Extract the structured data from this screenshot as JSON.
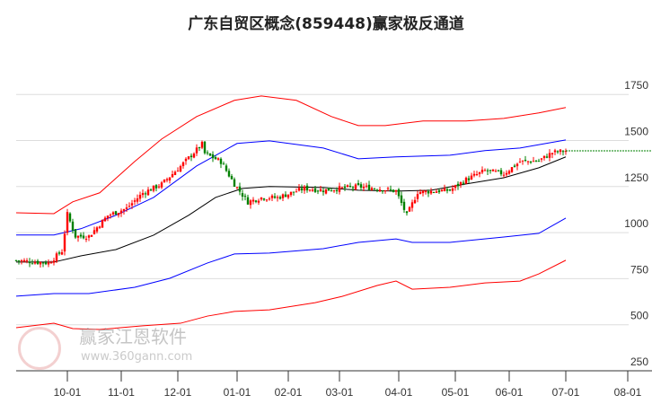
{
  "chart_data": {
    "type": "candlestick",
    "title": "广东自贸区概念(859448)赢家极反通道",
    "ylim": [
      250,
      1750
    ],
    "yticks": [
      250,
      500,
      750,
      1000,
      1250,
      1500,
      1750
    ],
    "ytick_labels": [
      "250",
      "500",
      "750",
      "1000",
      "1250",
      "1500",
      "1750"
    ],
    "xticks": [
      {
        "day": 19,
        "label": "10-01"
      },
      {
        "day": 39,
        "label": "11-01"
      },
      {
        "day": 60,
        "label": "12-01"
      },
      {
        "day": 82,
        "label": "01-01"
      },
      {
        "day": 101,
        "label": "02-01"
      },
      {
        "day": 120,
        "label": "03-01"
      },
      {
        "day": 142,
        "label": "04-01"
      },
      {
        "day": 163,
        "label": "05-01"
      },
      {
        "day": 183,
        "label": "06-01"
      },
      {
        "day": 204,
        "label": "07-01"
      },
      {
        "day": 227,
        "label": "08-01"
      }
    ],
    "last_day": 204,
    "last_close": 1444,
    "close_keypoints": [
      [
        0,
        849
      ],
      [
        12,
        835
      ],
      [
        17,
        900
      ],
      [
        19,
        1100
      ],
      [
        22,
        980
      ],
      [
        27,
        980
      ],
      [
        34,
        1093
      ],
      [
        41,
        1132
      ],
      [
        47,
        1215
      ],
      [
        54,
        1263
      ],
      [
        61,
        1360
      ],
      [
        69,
        1480
      ],
      [
        70,
        1430
      ],
      [
        76,
        1385
      ],
      [
        81,
        1263
      ],
      [
        86,
        1166
      ],
      [
        91,
        1190
      ],
      [
        97,
        1190
      ],
      [
        107,
        1240
      ],
      [
        114,
        1230
      ],
      [
        127,
        1250
      ],
      [
        134,
        1240
      ],
      [
        141,
        1225
      ],
      [
        145,
        1093
      ],
      [
        149,
        1220
      ],
      [
        161,
        1230
      ],
      [
        167,
        1288
      ],
      [
        174,
        1336
      ],
      [
        181,
        1320
      ],
      [
        187,
        1385
      ],
      [
        194,
        1390
      ],
      [
        199,
        1434
      ],
      [
        204,
        1444
      ]
    ],
    "series": [
      {
        "name": "upper-outer",
        "color": "#ff0000",
        "points": [
          [
            0,
            1108
          ],
          [
            14,
            1103
          ],
          [
            21,
            1167
          ],
          [
            31,
            1216
          ],
          [
            44,
            1386
          ],
          [
            54,
            1508
          ],
          [
            67,
            1630
          ],
          [
            81,
            1718
          ],
          [
            91,
            1742
          ],
          [
            104,
            1718
          ],
          [
            117,
            1630
          ],
          [
            127,
            1581
          ],
          [
            137,
            1581
          ],
          [
            151,
            1606
          ],
          [
            167,
            1606
          ],
          [
            181,
            1620
          ],
          [
            194,
            1650
          ],
          [
            204,
            1679
          ]
        ]
      },
      {
        "name": "upper-inner",
        "color": "#0000ff",
        "points": [
          [
            0,
            987
          ],
          [
            14,
            987
          ],
          [
            24,
            1021
          ],
          [
            37,
            1094
          ],
          [
            51,
            1191
          ],
          [
            67,
            1362
          ],
          [
            82,
            1484
          ],
          [
            94,
            1498
          ],
          [
            114,
            1459
          ],
          [
            127,
            1401
          ],
          [
            141,
            1411
          ],
          [
            161,
            1420
          ],
          [
            174,
            1445
          ],
          [
            187,
            1459
          ],
          [
            204,
            1503
          ]
        ]
      },
      {
        "name": "middle",
        "color": "#000000",
        "points": [
          [
            0,
            840
          ],
          [
            14,
            840
          ],
          [
            24,
            874
          ],
          [
            37,
            908
          ],
          [
            51,
            986
          ],
          [
            64,
            1094
          ],
          [
            74,
            1191
          ],
          [
            84,
            1240
          ],
          [
            94,
            1250
          ],
          [
            114,
            1245
          ],
          [
            127,
            1230
          ],
          [
            141,
            1225
          ],
          [
            154,
            1230
          ],
          [
            167,
            1264
          ],
          [
            181,
            1298
          ],
          [
            194,
            1352
          ],
          [
            204,
            1411
          ]
        ]
      },
      {
        "name": "lower-inner",
        "color": "#0000ff",
        "points": [
          [
            0,
            655
          ],
          [
            14,
            669
          ],
          [
            27,
            669
          ],
          [
            44,
            703
          ],
          [
            57,
            752
          ],
          [
            71,
            835
          ],
          [
            81,
            884
          ],
          [
            94,
            889
          ],
          [
            114,
            913
          ],
          [
            127,
            947
          ],
          [
            141,
            966
          ],
          [
            147,
            947
          ],
          [
            161,
            947
          ],
          [
            181,
            976
          ],
          [
            194,
            996
          ],
          [
            204,
            1079
          ]
        ]
      },
      {
        "name": "lower-outer",
        "color": "#ff0000",
        "points": [
          [
            0,
            484
          ],
          [
            14,
            508
          ],
          [
            21,
            479
          ],
          [
            31,
            474
          ],
          [
            47,
            494
          ],
          [
            61,
            508
          ],
          [
            71,
            547
          ],
          [
            81,
            572
          ],
          [
            94,
            581
          ],
          [
            111,
            620
          ],
          [
            121,
            654
          ],
          [
            134,
            713
          ],
          [
            141,
            737
          ],
          [
            147,
            693
          ],
          [
            161,
            703
          ],
          [
            174,
            727
          ],
          [
            187,
            737
          ],
          [
            194,
            776
          ],
          [
            204,
            850
          ]
        ]
      }
    ],
    "colors": {
      "up": "#ff0000",
      "down": "#008000",
      "grid": "#dddddd",
      "last_line": "#008000"
    }
  },
  "watermark": {
    "stamp": "江赢恩家",
    "brand": "赢家江恩软件",
    "url": "www.360gann.com"
  }
}
